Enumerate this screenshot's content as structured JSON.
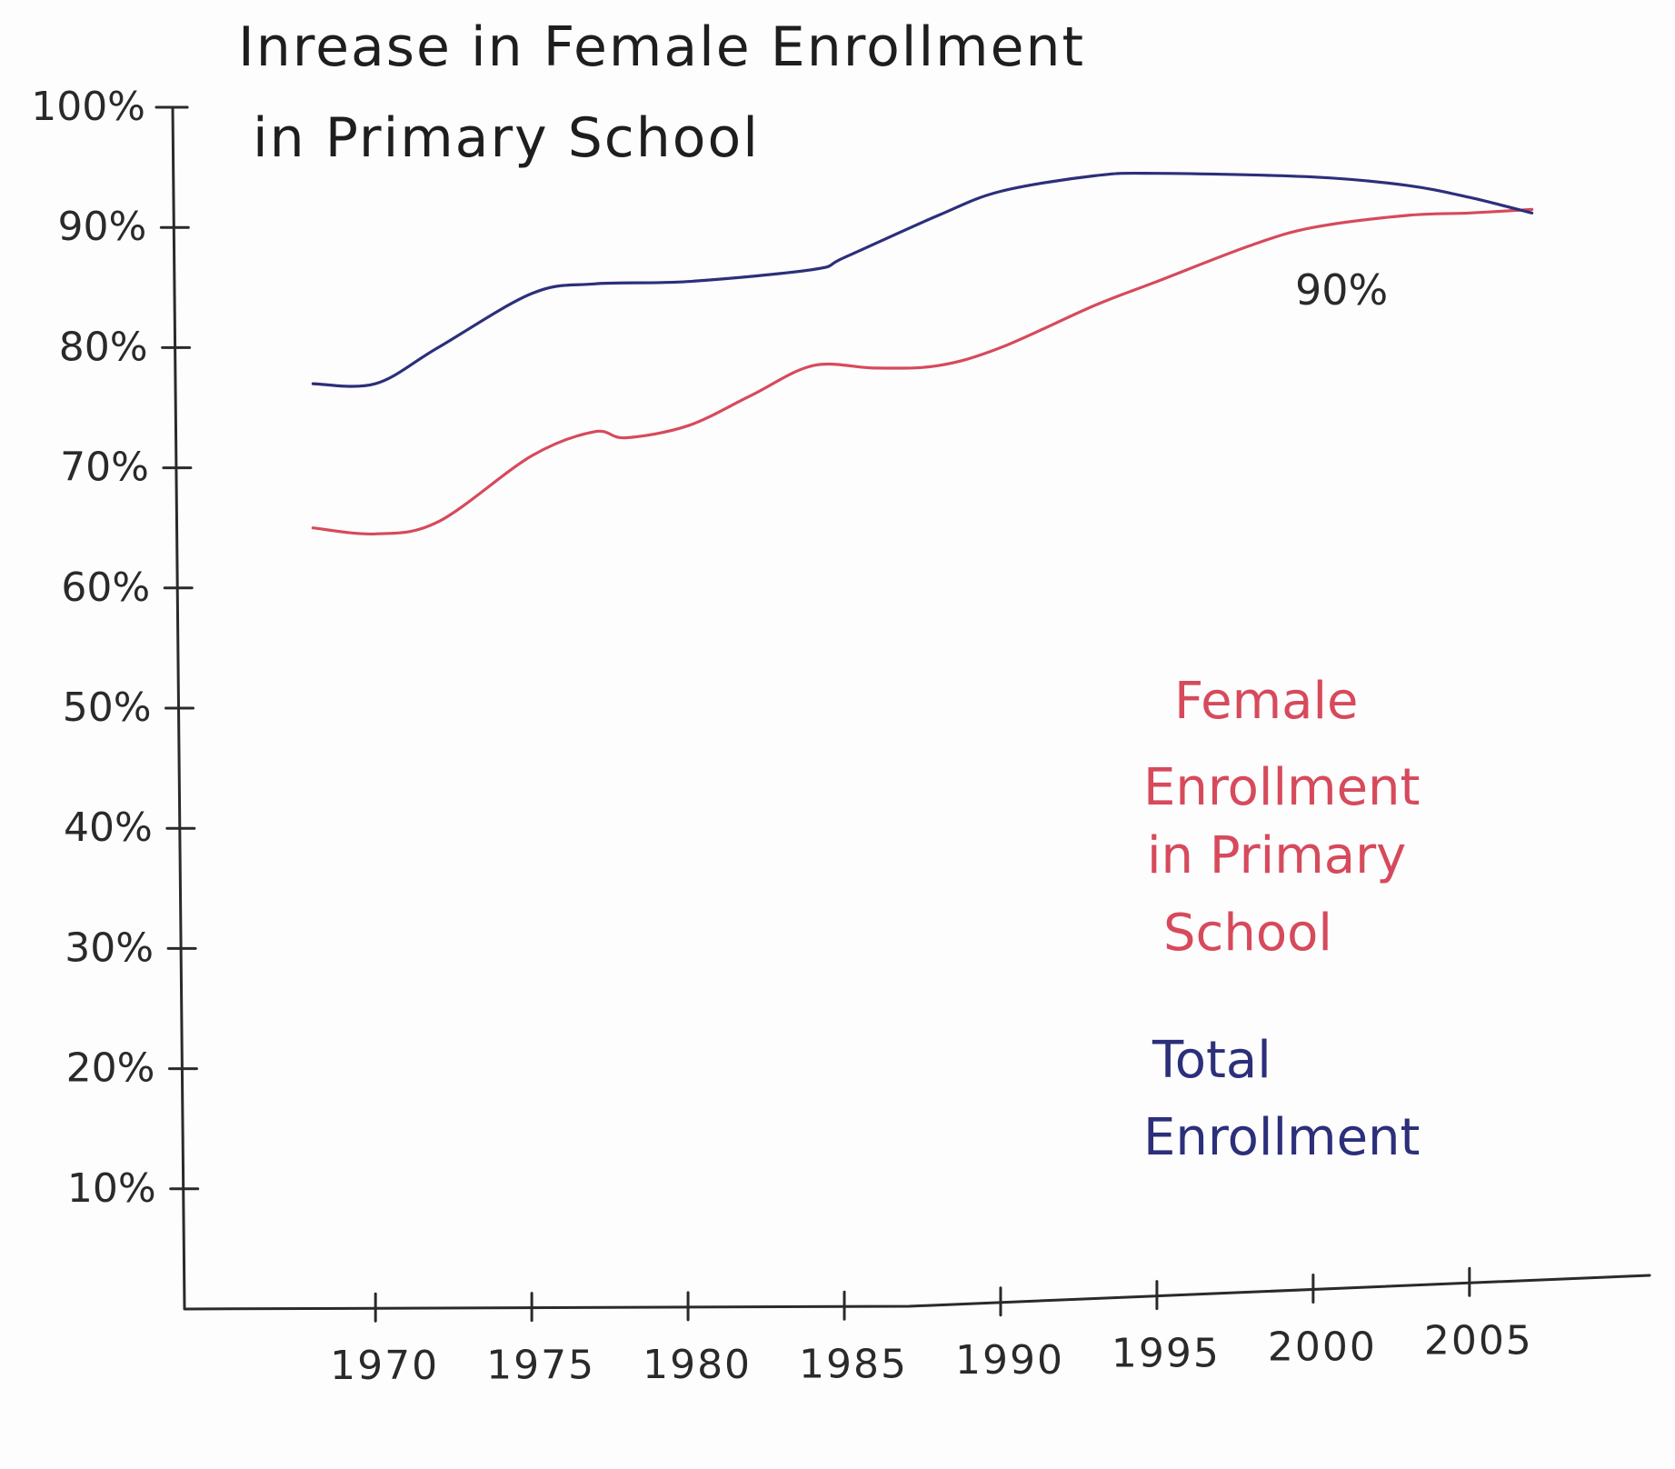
{
  "chart_data": {
    "type": "line",
    "title": "Inrease in Female Enrollment in Primary School",
    "title_lines": [
      "Inrease in Female Enrollment",
      "in Primary School"
    ],
    "xlabel": "",
    "ylabel": "",
    "x_ticks": [
      "1970",
      "1975",
      "1980",
      "1985",
      "1990",
      "1995",
      "2000",
      "2005"
    ],
    "y_ticks": [
      "100%",
      "90%",
      "80%",
      "70%",
      "60%",
      "50%",
      "40%",
      "30%",
      "20%",
      "10%"
    ],
    "xlim": [
      1967,
      2008
    ],
    "ylim": [
      0,
      100
    ],
    "grid": false,
    "legend_position": "lower-right",
    "annotation": "90%",
    "series": [
      {
        "name": "Female Enrollment in Primary School",
        "name_lines": [
          "Female",
          "Enrollment",
          "in Primary",
          "School"
        ],
        "color": "#d64a5c",
        "x": [
          1968,
          1970,
          1972,
          1975,
          1977,
          1978,
          1980,
          1982,
          1984,
          1986,
          1988,
          1990,
          1993,
          1995,
          1998,
          2000,
          2003,
          2005,
          2007
        ],
        "y": [
          65,
          64.5,
          65.5,
          71,
          73,
          72.5,
          73.5,
          76,
          78.5,
          78.3,
          78.5,
          80,
          83.5,
          85.5,
          88.5,
          90,
          91,
          91.2,
          91.5
        ]
      },
      {
        "name": "Total Enrollment",
        "name_lines": [
          "Total",
          "Enrollment"
        ],
        "color": "#2c2f7a",
        "x": [
          1968,
          1970,
          1972,
          1975,
          1977,
          1980,
          1984,
          1985,
          1988,
          1990,
          1993,
          1995,
          2000,
          2003,
          2005,
          2007
        ],
        "y": [
          77,
          77,
          80,
          84.5,
          85.3,
          85.5,
          86.5,
          87.5,
          91,
          93,
          94.3,
          94.5,
          94.2,
          93.5,
          92.5,
          91.2
        ]
      }
    ]
  }
}
